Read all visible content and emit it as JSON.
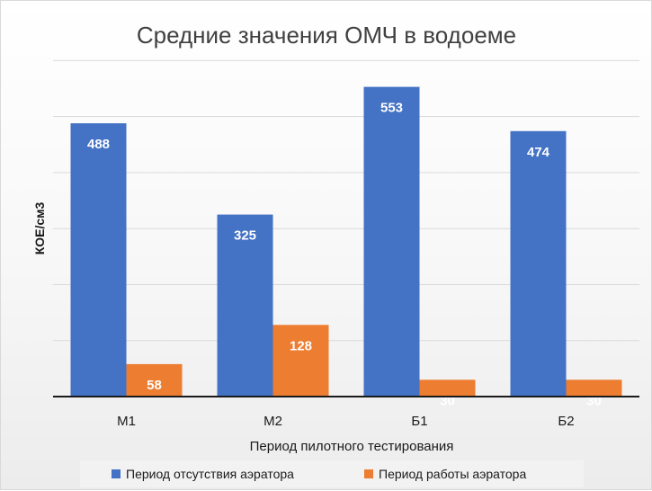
{
  "chart_data": {
    "type": "bar",
    "title": "Средние значения ОМЧ в водоеме",
    "xlabel": "Период пилотного тестирования",
    "ylabel": "КОЕ/см3",
    "categories": [
      "М1",
      "М2",
      "Б1",
      "Б2"
    ],
    "series": [
      {
        "name": "Период отсутствия аэратора",
        "values": [
          488,
          325,
          553,
          474
        ],
        "color": "#4472C4"
      },
      {
        "name": "Период работы аэратора",
        "values": [
          58,
          128,
          30,
          30
        ],
        "color": "#ED7D31"
      }
    ],
    "ylim": [
      0,
      600
    ],
    "grid": true,
    "legend": "bottom",
    "data_labels": true
  }
}
